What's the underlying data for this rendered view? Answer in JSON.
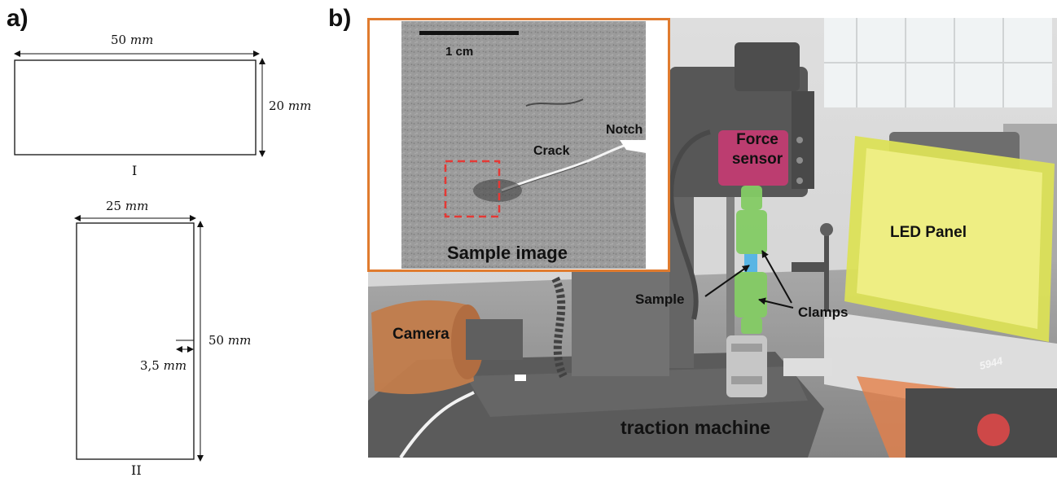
{
  "panel_a": {
    "letter": "a)",
    "sample_I": {
      "width": "50",
      "height": "20",
      "unit": "mm",
      "label": "I"
    },
    "sample_II": {
      "width": "25",
      "height": "50",
      "notch": "3,5",
      "unit": "mm",
      "label": "II"
    }
  },
  "panel_b": {
    "letter": "b)",
    "inset": {
      "scale_bar": "1 cm",
      "crack": "Crack",
      "notch": "Notch",
      "caption": "Sample image"
    },
    "labels": {
      "force_sensor_line1": "Force",
      "force_sensor_line2": "sensor",
      "led_panel": "LED Panel",
      "sample": "Sample",
      "clamps": "Clamps",
      "camera": "Camera",
      "machine": "traction machine",
      "machine_plate": "5944"
    },
    "colors": {
      "inset_border": "#e07b2e",
      "camera": "#b8662c",
      "force_sensor": "#c2185b",
      "led_panel": "#d6dc3a",
      "clamps": "#6fc34a",
      "sample": "#3da8e0",
      "roi_box": "#e53935"
    }
  }
}
